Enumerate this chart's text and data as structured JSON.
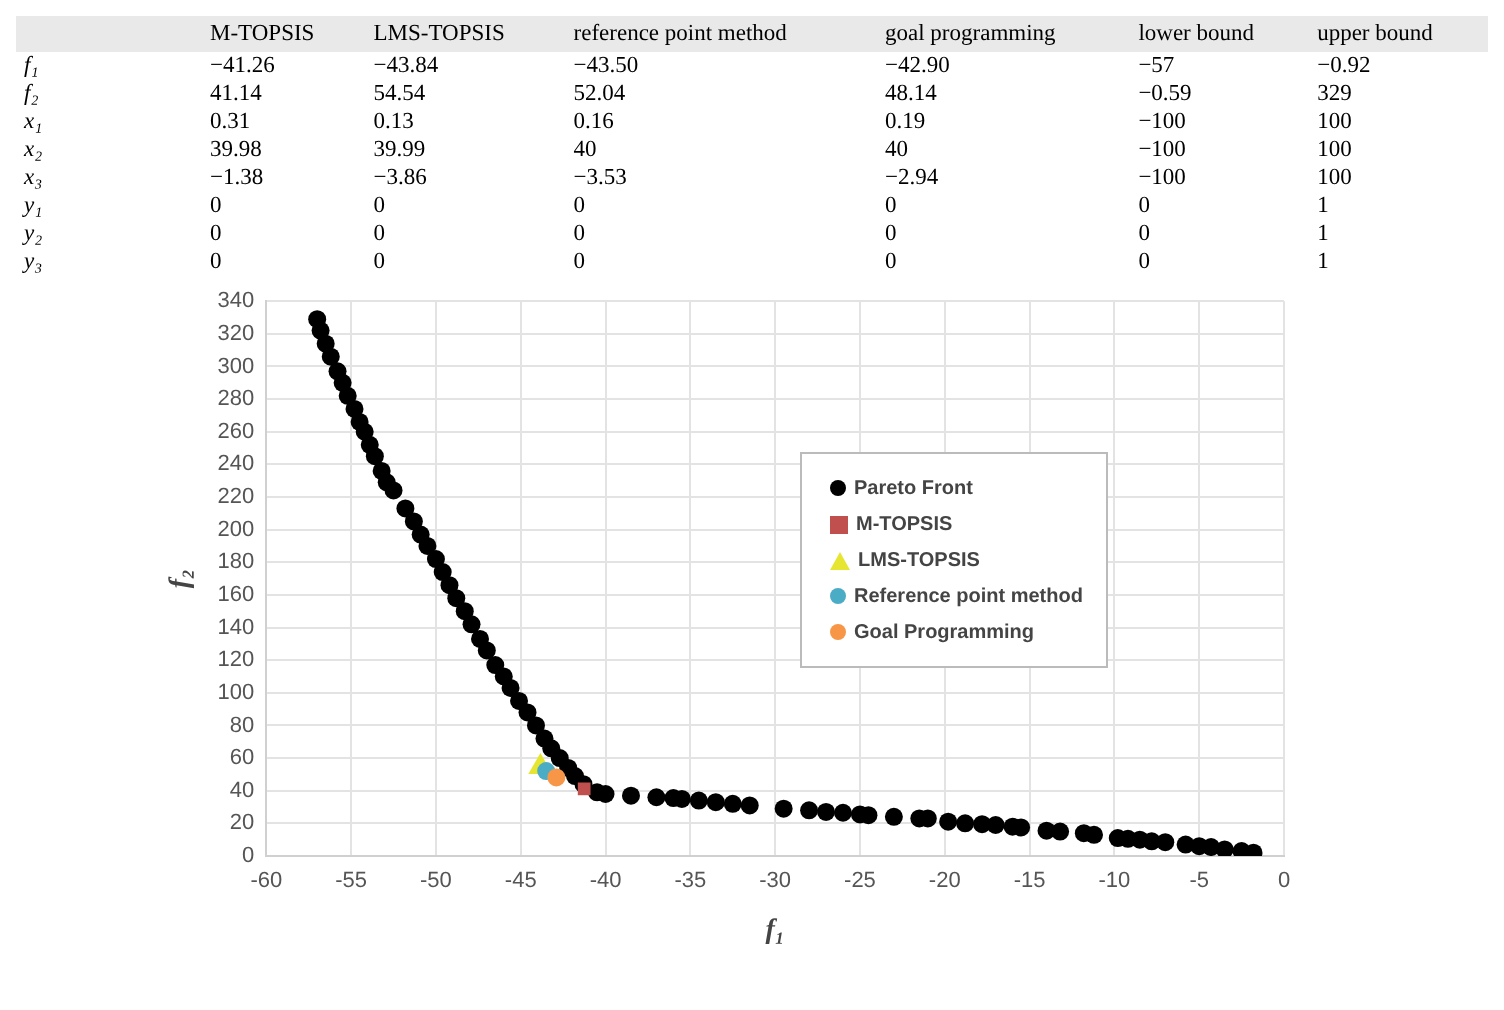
{
  "chart_data": [
    {
      "type": "other",
      "categories": [
        "M-TOPSIS",
        "LMS-TOPSIS",
        "reference point method",
        "goal programming",
        "lower bound",
        "upper bound"
      ],
      "y_categories": [
        "f₁",
        "f₂",
        "x₁",
        "x₂",
        "x₃",
        "y₁",
        "y₂",
        "y₃"
      ],
      "cell_labels": [
        [
          "−41.26",
          "−43.84",
          "−43.50",
          "−42.90",
          "−57",
          "−0.92"
        ],
        [
          "41.14",
          "54.54",
          "52.04",
          "48.14",
          "−0.59",
          "329"
        ],
        [
          "0.31",
          "0.13",
          "0.16",
          "0.19",
          "−100",
          "100"
        ],
        [
          "39.98",
          "39.99",
          "40",
          "40",
          "−100",
          "100"
        ],
        [
          "−1.38",
          "−3.86",
          "−3.53",
          "−2.94",
          "−100",
          "100"
        ],
        [
          "0",
          "0",
          "0",
          "0",
          "0",
          "1"
        ],
        [
          "0",
          "0",
          "0",
          "0",
          "0",
          "1"
        ],
        [
          "0",
          "0",
          "0",
          "0",
          "0",
          "1"
        ]
      ]
    },
    {
      "type": "scatter",
      "xlabel": "f₁",
      "ylabel": "f₂",
      "xlim": [
        -60,
        0
      ],
      "xticks": [
        -60,
        -55,
        -50,
        -45,
        -40,
        -35,
        -30,
        -25,
        -20,
        -15,
        -10,
        -5,
        0
      ],
      "ylim": [
        0,
        340
      ],
      "yticks": [
        0,
        20,
        40,
        60,
        80,
        100,
        120,
        140,
        160,
        180,
        200,
        220,
        240,
        260,
        280,
        300,
        320,
        340
      ],
      "grid": true,
      "legend": "right",
      "series": [
        {
          "name": "Pareto Front",
          "color": "#000000",
          "marker": "circle",
          "x": [
            -57,
            -56.8,
            -56.5,
            -56.2,
            -55.8,
            -55.5,
            -55.2,
            -54.8,
            -54.5,
            -54.2,
            -53.9,
            -53.6,
            -53.2,
            -52.9,
            -52.5,
            -51.8,
            -51.3,
            -50.9,
            -50.5,
            -50,
            -49.6,
            -49.2,
            -48.8,
            -48.3,
            -47.9,
            -47.4,
            -47,
            -46.5,
            -46,
            -45.6,
            -45.1,
            -44.6,
            -44.1,
            -43.6,
            -43.2,
            -42.7,
            -42.2,
            -41.8,
            -41.3,
            -40.5,
            -40,
            -38.5,
            -37,
            -36,
            -35.5,
            -34.5,
            -33.5,
            -32.5,
            -31.5,
            -29.5,
            -28,
            -27,
            -26,
            -25,
            -24.5,
            -23,
            -21.5,
            -21,
            -19.8,
            -18.8,
            -17.8,
            -17,
            -16,
            -15.5,
            -14,
            -13.2,
            -11.8,
            -11.2,
            -9.8,
            -9.2,
            -8.5,
            -7.8,
            -7,
            -5.8,
            -5,
            -4.3,
            -3.5,
            -2.5,
            -1.8
          ],
          "values": [
            329,
            322,
            314,
            306,
            297,
            290,
            282,
            274,
            266,
            260,
            252,
            245,
            236,
            229,
            224,
            213,
            205,
            197,
            190,
            182,
            174,
            166,
            158,
            150,
            142,
            133,
            126,
            117,
            110,
            103,
            95,
            88,
            80,
            72,
            66,
            60,
            54,
            49,
            44,
            39,
            38,
            37,
            36,
            35.5,
            35,
            34,
            33,
            32,
            31,
            29,
            28,
            27,
            26.5,
            25.5,
            25,
            24,
            23,
            23,
            21,
            20,
            19.5,
            19,
            18,
            17.5,
            15.5,
            15,
            14,
            13,
            11,
            10.5,
            10,
            9,
            8.5,
            7,
            6,
            5.5,
            4,
            3,
            2
          ]
        },
        {
          "name": "M-TOPSIS",
          "color": "#c0504d",
          "marker": "square",
          "x": [
            -41.26
          ],
          "values": [
            41.14
          ]
        },
        {
          "name": "LMS-TOPSIS",
          "color": "#e6e632",
          "marker": "triangle",
          "x": [
            -43.84
          ],
          "values": [
            54.54
          ]
        },
        {
          "name": "Reference point method",
          "color": "#4bacc6",
          "marker": "circle",
          "x": [
            -43.5
          ],
          "values": [
            52.04
          ]
        },
        {
          "name": "Goal Programming",
          "color": "#f79646",
          "marker": "circle",
          "x": [
            -42.9
          ],
          "values": [
            48.14
          ]
        }
      ]
    }
  ]
}
